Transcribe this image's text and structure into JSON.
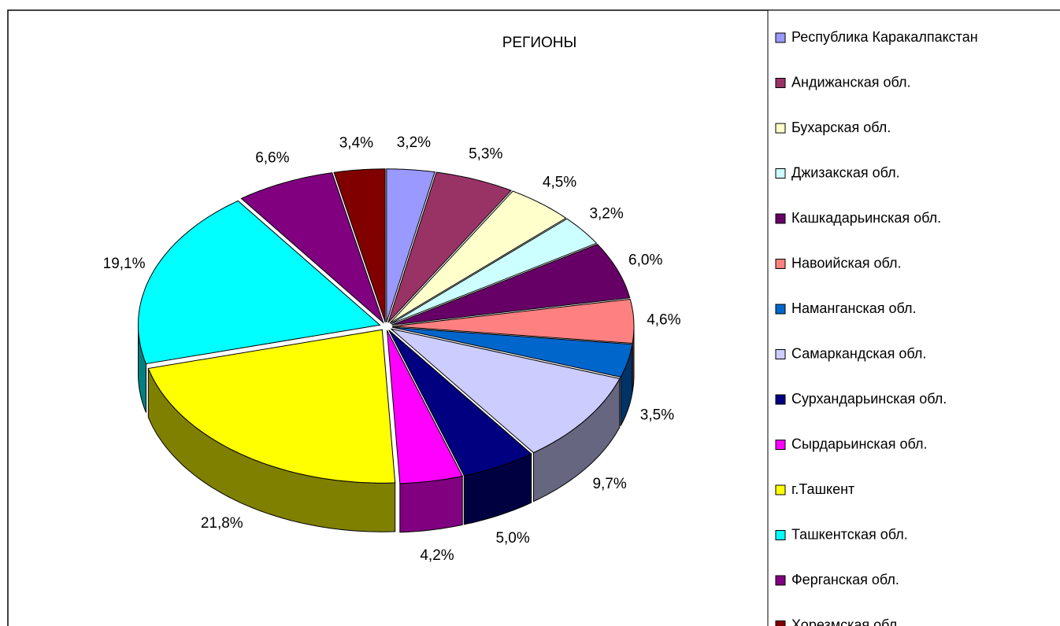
{
  "chart_data": {
    "type": "pie",
    "title": "РЕГИОНЫ",
    "categories": [
      "Республика Каракалпакстан",
      "Андижанская обл.",
      "Бухарская обл.",
      "Джизакская обл.",
      "Кашкадарьинская обл.",
      "Навоийская обл.",
      "Наманганская обл.",
      "Самаркандская обл.",
      "Сурхандарьинская обл.",
      "Сырдарьинская обл.",
      "г.Ташкент",
      "Ташкентская обл.",
      "Ферганская обл.",
      "Хорезмская обл."
    ],
    "values": [
      3.2,
      5.3,
      4.5,
      3.2,
      6.0,
      4.6,
      3.5,
      9.7,
      5.0,
      4.2,
      21.8,
      19.1,
      6.6,
      3.4
    ],
    "value_labels": [
      "3,2%",
      "5,3%",
      "4,5%",
      "3,2%",
      "6,0%",
      "4,6%",
      "3,5%",
      "9,7%",
      "5,0%",
      "4,2%",
      "21,8%",
      "19,1%",
      "6,6%",
      "3,4%"
    ],
    "colors": [
      "#9999ff",
      "#993366",
      "#ffffcc",
      "#ccffff",
      "#660066",
      "#ff8080",
      "#0066cc",
      "#ccccff",
      "#000080",
      "#ff00ff",
      "#ffff00",
      "#00ffff",
      "#800080",
      "#800000"
    ]
  }
}
